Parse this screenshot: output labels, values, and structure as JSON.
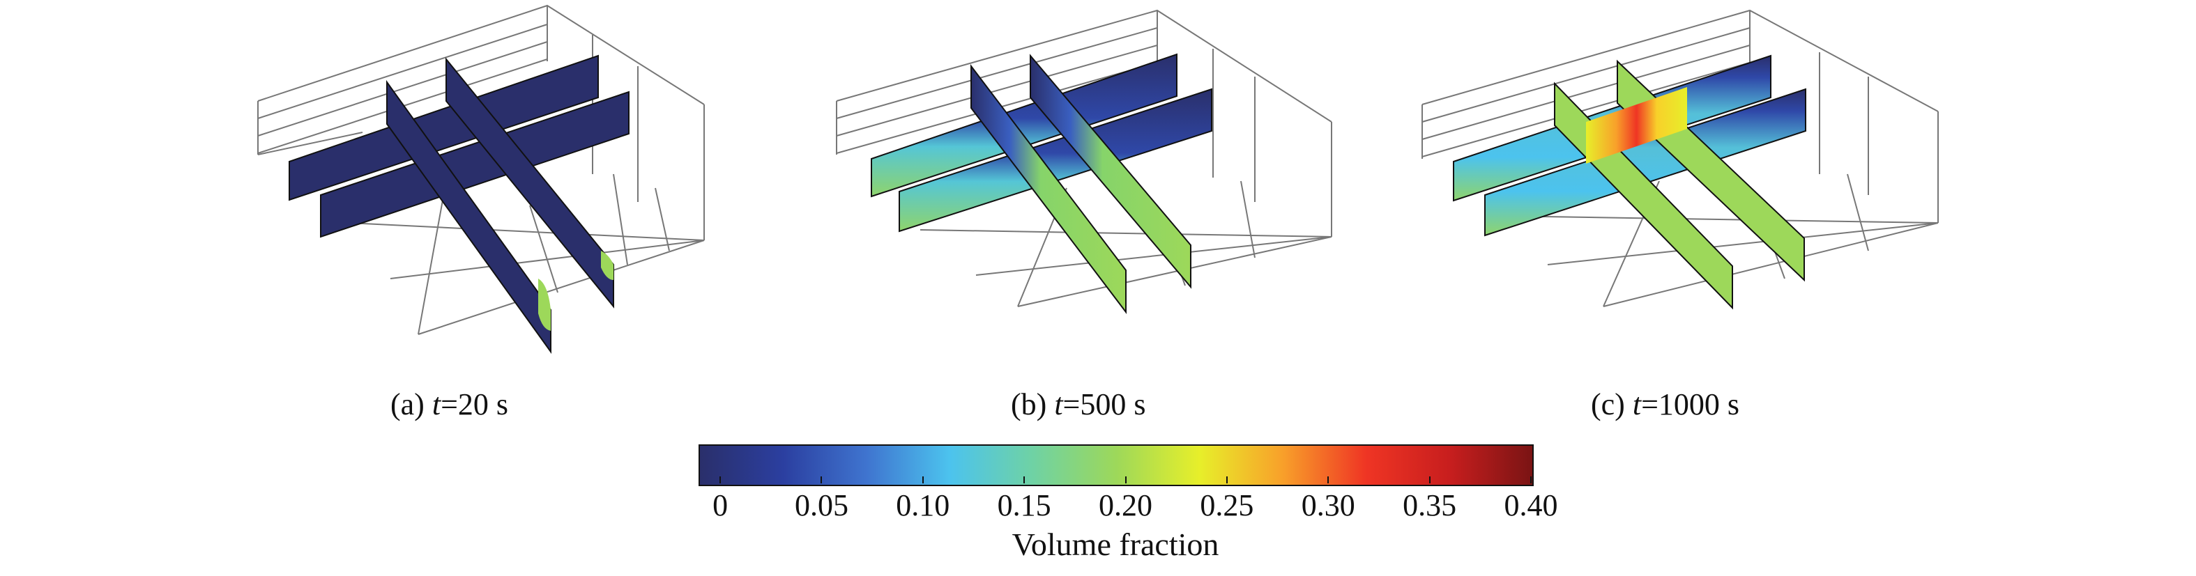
{
  "panels": [
    {
      "label_prefix": "(a) ",
      "label_var": "t",
      "label_suffix": "=20 s",
      "stage": 0
    },
    {
      "label_prefix": "(b) ",
      "label_var": "t",
      "label_suffix": "=500 s",
      "stage": 1
    },
    {
      "label_prefix": "(c) ",
      "label_var": "t",
      "label_suffix": "=1000 s",
      "stage": 2
    }
  ],
  "colorbar": {
    "title": "Volume fraction",
    "ticks": [
      "0",
      "0.05",
      "0.10",
      "0.15",
      "0.20",
      "0.25",
      "0.30",
      "0.35",
      "0.40"
    ],
    "tick_values": [
      0,
      0.05,
      0.1,
      0.15,
      0.2,
      0.25,
      0.3,
      0.35,
      0.4
    ],
    "range": [
      -0.01,
      0.4
    ],
    "colors": [
      "#2a2f6b",
      "#2b3fa0",
      "#3f74cf",
      "#4cc3ee",
      "#6fd2a4",
      "#9dd85a",
      "#e7ef2a",
      "#f8a02a",
      "#ef3524",
      "#c81e1e",
      "#7a1414"
    ]
  }
}
